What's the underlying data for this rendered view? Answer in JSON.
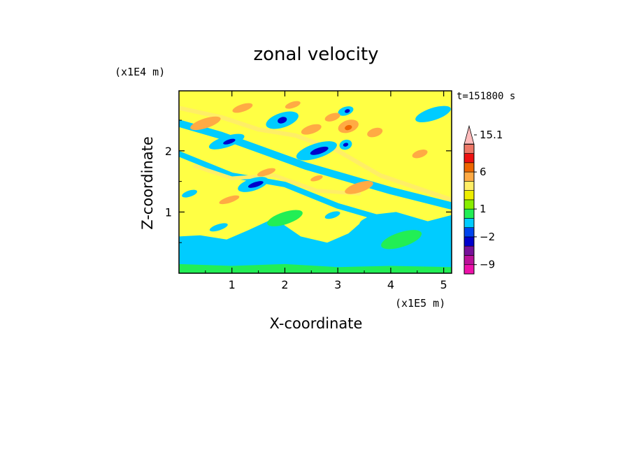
{
  "chart_data": {
    "type": "heatmap",
    "title": "zonal velocity",
    "xlabel": "X-coordinate",
    "ylabel": "Z-coordinate",
    "x_unit": "(x1E5 m)",
    "y_unit": "(x1E4 m)",
    "annotation": "t=151800 s",
    "xlim": [
      0,
      5.15
    ],
    "ylim": [
      0,
      2.98
    ],
    "x_ticks": [
      1,
      2,
      3,
      4,
      5
    ],
    "y_ticks": [
      1,
      2
    ],
    "colorbar": {
      "levels": [
        -12,
        -9,
        -6,
        -4,
        -2,
        -1,
        0,
        1,
        2,
        3,
        4,
        6,
        8,
        10,
        12.5,
        15.1
      ],
      "colors": [
        "#ee11aa",
        "#bb1199",
        "#771199",
        "#0000cc",
        "#0044ee",
        "#00ccff",
        "#22ee55",
        "#88ee00",
        "#eeee00",
        "#ffee66",
        "#ffaa44",
        "#ee6600",
        "#ee1111",
        "#ee7766",
        "#ffbbbb"
      ],
      "labels": [
        {
          "text": "15.1",
          "value": 15.1
        },
        {
          "text": "6",
          "value": 6
        },
        {
          "text": "1",
          "value": 1
        },
        {
          "text": "−2",
          "value": -2
        },
        {
          "text": "−9",
          "value": -9
        }
      ]
    },
    "background_field_color": "#ffff44",
    "features": [
      {
        "kind": "band",
        "value": -1,
        "points": [
          [
            0,
            2.45
          ],
          [
            0.8,
            2.25
          ],
          [
            1.6,
            2.0
          ],
          [
            2.4,
            1.75
          ],
          [
            3.2,
            1.55
          ],
          [
            4.0,
            1.35
          ],
          [
            5.15,
            1.1
          ]
        ],
        "width": 0.12
      },
      {
        "kind": "band",
        "value": -1,
        "points": [
          [
            0,
            1.95
          ],
          [
            1.0,
            1.6
          ],
          [
            2.0,
            1.45
          ],
          [
            3.0,
            1.1
          ],
          [
            4.0,
            0.85
          ],
          [
            5.15,
            0.6
          ]
        ],
        "width": 0.09
      },
      {
        "kind": "band",
        "value": 3,
        "points": [
          [
            0,
            2.7
          ],
          [
            0.8,
            2.55
          ],
          [
            1.5,
            2.35
          ],
          [
            2.2,
            2.25
          ],
          [
            3.0,
            2.0
          ],
          [
            3.8,
            1.6
          ],
          [
            5.15,
            1.2
          ]
        ],
        "width": 0.07
      },
      {
        "kind": "band",
        "value": 3,
        "points": [
          [
            0.3,
            1.75
          ],
          [
            1.0,
            1.55
          ],
          [
            1.8,
            1.6
          ],
          [
            2.6,
            1.35
          ],
          [
            3.4,
            1.3
          ]
        ],
        "width": 0.06
      },
      {
        "kind": "region",
        "value": -1,
        "points": [
          [
            0,
            0.6
          ],
          [
            0.4,
            0.62
          ],
          [
            0.9,
            0.55
          ],
          [
            1.3,
            0.7
          ],
          [
            1.8,
            0.9
          ],
          [
            2.3,
            0.6
          ],
          [
            2.8,
            0.5
          ],
          [
            3.2,
            0.65
          ],
          [
            3.6,
            0.95
          ],
          [
            4.1,
            1.0
          ],
          [
            4.7,
            0.85
          ],
          [
            5.15,
            0.95
          ],
          [
            5.15,
            0.0
          ],
          [
            0,
            0.0
          ]
        ]
      },
      {
        "kind": "region",
        "value": 0,
        "points": [
          [
            0,
            0.15
          ],
          [
            1.0,
            0.12
          ],
          [
            2.0,
            0.15
          ],
          [
            3.0,
            0.1
          ],
          [
            4.0,
            0.12
          ],
          [
            5.15,
            0.1
          ],
          [
            5.15,
            0.0
          ],
          [
            0,
            0.0
          ]
        ]
      },
      {
        "kind": "blob",
        "value": -1,
        "cx": 1.95,
        "cy": 2.5,
        "rx": 0.32,
        "ry": 0.12
      },
      {
        "kind": "blob",
        "value": -4,
        "cx": 1.95,
        "cy": 2.5,
        "rx": 0.09,
        "ry": 0.05
      },
      {
        "kind": "blob",
        "value": -1,
        "cx": 0.9,
        "cy": 2.15,
        "rx": 0.35,
        "ry": 0.09
      },
      {
        "kind": "blob",
        "value": -4,
        "cx": 0.95,
        "cy": 2.15,
        "rx": 0.12,
        "ry": 0.035
      },
      {
        "kind": "blob",
        "value": -1,
        "cx": 2.6,
        "cy": 2.0,
        "rx": 0.4,
        "ry": 0.12
      },
      {
        "kind": "blob",
        "value": -4,
        "cx": 2.65,
        "cy": 2.0,
        "rx": 0.18,
        "ry": 0.05
      },
      {
        "kind": "blob",
        "value": -1,
        "cx": 1.4,
        "cy": 1.45,
        "rx": 0.3,
        "ry": 0.1
      },
      {
        "kind": "blob",
        "value": -4,
        "cx": 1.45,
        "cy": 1.45,
        "rx": 0.15,
        "ry": 0.04
      },
      {
        "kind": "blob",
        "value": -1,
        "cx": 3.15,
        "cy": 2.65,
        "rx": 0.15,
        "ry": 0.07
      },
      {
        "kind": "blob",
        "value": -4,
        "cx": 3.18,
        "cy": 2.65,
        "rx": 0.05,
        "ry": 0.03
      },
      {
        "kind": "blob",
        "value": -1,
        "cx": 3.15,
        "cy": 2.1,
        "rx": 0.12,
        "ry": 0.08
      },
      {
        "kind": "blob",
        "value": -4,
        "cx": 3.15,
        "cy": 2.1,
        "rx": 0.05,
        "ry": 0.03
      },
      {
        "kind": "blob",
        "value": 4,
        "cx": 0.5,
        "cy": 2.45,
        "rx": 0.3,
        "ry": 0.08
      },
      {
        "kind": "blob",
        "value": 4,
        "cx": 3.2,
        "cy": 2.4,
        "rx": 0.2,
        "ry": 0.1
      },
      {
        "kind": "blob",
        "value": 6,
        "cx": 3.2,
        "cy": 2.38,
        "rx": 0.07,
        "ry": 0.04
      },
      {
        "kind": "blob",
        "value": 4,
        "cx": 2.5,
        "cy": 2.35,
        "rx": 0.2,
        "ry": 0.07
      },
      {
        "kind": "blob",
        "value": 4,
        "cx": 1.65,
        "cy": 1.65,
        "rx": 0.18,
        "ry": 0.05
      },
      {
        "kind": "blob",
        "value": 4,
        "cx": 3.4,
        "cy": 1.4,
        "rx": 0.28,
        "ry": 0.08
      },
      {
        "kind": "blob",
        "value": 4,
        "cx": 1.2,
        "cy": 2.7,
        "rx": 0.2,
        "ry": 0.06
      },
      {
        "kind": "blob",
        "value": 4,
        "cx": 2.15,
        "cy": 2.75,
        "rx": 0.15,
        "ry": 0.05
      },
      {
        "kind": "blob",
        "value": 4,
        "cx": 2.9,
        "cy": 2.55,
        "rx": 0.15,
        "ry": 0.06
      },
      {
        "kind": "blob",
        "value": 4,
        "cx": 3.7,
        "cy": 2.3,
        "rx": 0.15,
        "ry": 0.07
      },
      {
        "kind": "blob",
        "value": 4,
        "cx": 4.55,
        "cy": 1.95,
        "rx": 0.15,
        "ry": 0.06
      },
      {
        "kind": "blob",
        "value": 4,
        "cx": 0.95,
        "cy": 1.2,
        "rx": 0.2,
        "ry": 0.05
      },
      {
        "kind": "blob",
        "value": 4,
        "cx": 2.6,
        "cy": 1.55,
        "rx": 0.12,
        "ry": 0.04
      },
      {
        "kind": "blob",
        "value": -1,
        "cx": 4.8,
        "cy": 2.6,
        "rx": 0.35,
        "ry": 0.1
      },
      {
        "kind": "blob",
        "value": -1,
        "cx": 0.2,
        "cy": 1.3,
        "rx": 0.15,
        "ry": 0.05
      },
      {
        "kind": "blob",
        "value": -1,
        "cx": 1.3,
        "cy": 0.4,
        "rx": 0.12,
        "ry": 0.05
      },
      {
        "kind": "blob",
        "value": -1,
        "cx": 3.6,
        "cy": 0.85,
        "rx": 0.2,
        "ry": 0.07
      },
      {
        "kind": "blob",
        "value": -1,
        "cx": 0.75,
        "cy": 0.75,
        "rx": 0.18,
        "ry": 0.05
      },
      {
        "kind": "blob",
        "value": -1,
        "cx": 2.9,
        "cy": 0.95,
        "rx": 0.15,
        "ry": 0.05
      },
      {
        "kind": "blob",
        "value": -1,
        "cx": 4.7,
        "cy": 0.6,
        "rx": 0.12,
        "ry": 0.04
      },
      {
        "kind": "blob",
        "value": 0,
        "cx": 2.0,
        "cy": 0.9,
        "rx": 0.35,
        "ry": 0.1
      },
      {
        "kind": "blob",
        "value": 0,
        "cx": 4.2,
        "cy": 0.55,
        "rx": 0.4,
        "ry": 0.12
      }
    ]
  }
}
